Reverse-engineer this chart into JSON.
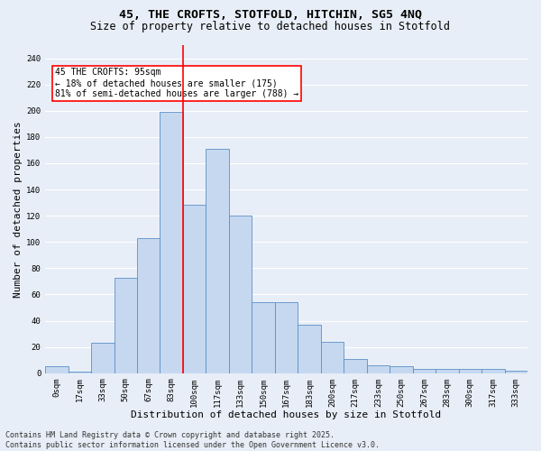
{
  "title_line1": "45, THE CROFTS, STOTFOLD, HITCHIN, SG5 4NQ",
  "title_line2": "Size of property relative to detached houses in Stotfold",
  "xlabel": "Distribution of detached houses by size in Stotfold",
  "ylabel": "Number of detached properties",
  "categories": [
    "0sqm",
    "17sqm",
    "33sqm",
    "50sqm",
    "67sqm",
    "83sqm",
    "100sqm",
    "117sqm",
    "133sqm",
    "150sqm",
    "167sqm",
    "183sqm",
    "200sqm",
    "217sqm",
    "233sqm",
    "250sqm",
    "267sqm",
    "283sqm",
    "300sqm",
    "317sqm",
    "333sqm"
  ],
  "values": [
    5,
    1,
    23,
    73,
    103,
    199,
    128,
    171,
    120,
    54,
    54,
    37,
    24,
    11,
    6,
    5,
    3,
    3,
    3,
    3,
    2
  ],
  "bar_color": "#c5d8f0",
  "bar_edge_color": "#5b8fc7",
  "vline_x": 5.5,
  "vline_color": "red",
  "annotation_text": "45 THE CROFTS: 95sqm\n← 18% of detached houses are smaller (175)\n81% of semi-detached houses are larger (788) →",
  "annotation_box_color": "white",
  "annotation_box_edge_color": "red",
  "ylim": [
    0,
    250
  ],
  "yticks": [
    0,
    20,
    40,
    60,
    80,
    100,
    120,
    140,
    160,
    180,
    200,
    220,
    240
  ],
  "background_color": "#e8eef7",
  "grid_color": "white",
  "footer_text": "Contains HM Land Registry data © Crown copyright and database right 2025.\nContains public sector information licensed under the Open Government Licence v3.0.",
  "title_fontsize": 9.5,
  "subtitle_fontsize": 8.5,
  "axis_label_fontsize": 8,
  "tick_fontsize": 6.5,
  "annotation_fontsize": 7,
  "footer_fontsize": 6
}
